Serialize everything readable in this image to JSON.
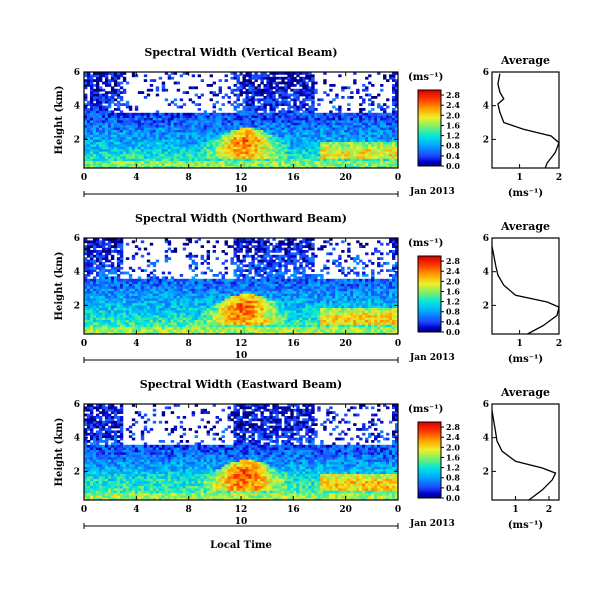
{
  "chart_data": [
    {
      "type": "heatmap",
      "title": "Spectral Width (Vertical Beam)",
      "xlabel": "",
      "ylabel": "Height (km)",
      "x_ticks": [
        "0",
        "4",
        "8",
        "12",
        "16",
        "20",
        "0"
      ],
      "y_ticks": [
        "2",
        "4",
        "6"
      ],
      "xlim": [
        0,
        24
      ],
      "ylim": [
        0.3,
        6
      ],
      "date_axis": {
        "day": "10",
        "month_label": "Jan 2013"
      },
      "colorbar": {
        "unit": "(ms⁻¹)",
        "ticks": [
          "0.0",
          "0.4",
          "0.8",
          "1.2",
          "1.6",
          "2.0",
          "2.4",
          "2.8"
        ],
        "range": [
          0,
          3.0
        ]
      },
      "layers": [
        {
          "height_km": 0.8,
          "value": 1.3
        },
        {
          "height_km": 1.5,
          "value": 1.0
        },
        {
          "height_km": 2.2,
          "value": 0.8
        },
        {
          "height_km": 3.2,
          "value": 0.5
        },
        {
          "height_km": 4.5,
          "value": 0.3
        },
        {
          "height_km": 5.7,
          "value": 0.2
        }
      ],
      "average_profile": {
        "title": "Average",
        "xlabel": "(ms⁻¹)",
        "x_ticks": [
          "1",
          "2"
        ],
        "y_ticks": [
          "2",
          "4",
          "6"
        ],
        "xlim": [
          0.3,
          2.0
        ],
        "ylim": [
          0.3,
          6
        ],
        "values": [
          [
            1.65,
            0.3
          ],
          [
            1.7,
            0.6
          ],
          [
            1.9,
            1.2
          ],
          [
            2.0,
            1.8
          ],
          [
            1.8,
            2.2
          ],
          [
            1.1,
            2.6
          ],
          [
            0.6,
            3.0
          ],
          [
            0.5,
            3.6
          ],
          [
            0.45,
            4.1
          ],
          [
            0.6,
            4.4
          ],
          [
            0.5,
            4.8
          ],
          [
            0.45,
            5.3
          ],
          [
            0.5,
            5.9
          ]
        ]
      }
    },
    {
      "type": "heatmap",
      "title": "Spectral Width (Northward Beam)",
      "xlabel": "",
      "ylabel": "Height (km)",
      "x_ticks": [
        "0",
        "4",
        "8",
        "12",
        "16",
        "20",
        "0"
      ],
      "y_ticks": [
        "2",
        "4",
        "6"
      ],
      "xlim": [
        0,
        24
      ],
      "ylim": [
        0.3,
        6
      ],
      "date_axis": {
        "day": "10",
        "month_label": "Jan 2013"
      },
      "colorbar": {
        "unit": "(ms⁻¹)",
        "ticks": [
          "0.0",
          "0.4",
          "0.8",
          "1.2",
          "1.6",
          "2.0",
          "2.4",
          "2.8"
        ],
        "range": [
          0,
          3.0
        ]
      },
      "layers": [
        {
          "height_km": 0.8,
          "value": 1.4
        },
        {
          "height_km": 1.5,
          "value": 1.1
        },
        {
          "height_km": 2.2,
          "value": 0.9
        },
        {
          "height_km": 3.2,
          "value": 0.6
        },
        {
          "height_km": 4.5,
          "value": 0.4
        },
        {
          "height_km": 5.7,
          "value": 0.2
        }
      ],
      "average_profile": {
        "title": "Average",
        "xlabel": "(ms⁻¹)",
        "x_ticks": [
          "1",
          "2"
        ],
        "y_ticks": [
          "2",
          "4",
          "6"
        ],
        "xlim": [
          0.3,
          2.0
        ],
        "ylim": [
          0.3,
          6
        ],
        "values": [
          [
            1.2,
            0.3
          ],
          [
            1.6,
            0.8
          ],
          [
            1.95,
            1.4
          ],
          [
            2.0,
            1.9
          ],
          [
            1.7,
            2.2
          ],
          [
            0.9,
            2.6
          ],
          [
            0.6,
            3.2
          ],
          [
            0.45,
            3.8
          ],
          [
            0.4,
            4.3
          ],
          [
            0.35,
            4.9
          ],
          [
            0.3,
            5.5
          ]
        ]
      }
    },
    {
      "type": "heatmap",
      "title": "Spectral Width (Eastward Beam)",
      "xlabel": "Local Time",
      "ylabel": "Height (km)",
      "x_ticks": [
        "0",
        "4",
        "8",
        "12",
        "16",
        "20",
        "0"
      ],
      "y_ticks": [
        "2",
        "4",
        "6"
      ],
      "xlim": [
        0,
        24
      ],
      "ylim": [
        0.3,
        6
      ],
      "date_axis": {
        "day": "10",
        "month_label": "Jan 2013"
      },
      "colorbar": {
        "unit": "(ms⁻¹)",
        "ticks": [
          "0.0",
          "0.4",
          "0.8",
          "1.2",
          "1.6",
          "2.0",
          "2.4",
          "2.8"
        ],
        "range": [
          0,
          3.0
        ]
      },
      "layers": [
        {
          "height_km": 0.8,
          "value": 1.4
        },
        {
          "height_km": 1.5,
          "value": 1.2
        },
        {
          "height_km": 2.2,
          "value": 0.9
        },
        {
          "height_km": 3.2,
          "value": 0.5
        },
        {
          "height_km": 4.5,
          "value": 0.3
        },
        {
          "height_km": 5.7,
          "value": 0.2
        }
      ],
      "average_profile": {
        "title": "Average",
        "xlabel": "(ms⁻¹)",
        "x_ticks": [
          "1",
          "2"
        ],
        "y_ticks": [
          "2",
          "4",
          "6"
        ],
        "xlim": [
          0.3,
          2.3
        ],
        "ylim": [
          0.3,
          6
        ],
        "values": [
          [
            1.4,
            0.3
          ],
          [
            1.8,
            0.9
          ],
          [
            2.1,
            1.5
          ],
          [
            2.2,
            1.9
          ],
          [
            1.8,
            2.2
          ],
          [
            1.0,
            2.6
          ],
          [
            0.6,
            3.2
          ],
          [
            0.45,
            3.8
          ],
          [
            0.4,
            4.4
          ],
          [
            0.35,
            5.0
          ],
          [
            0.3,
            5.6
          ]
        ]
      }
    }
  ]
}
